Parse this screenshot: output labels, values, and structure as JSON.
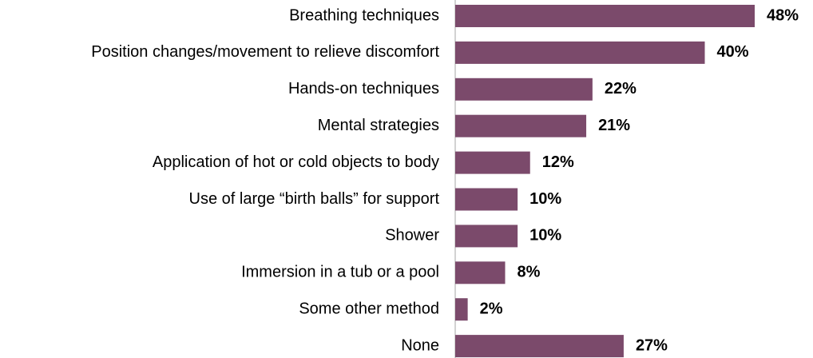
{
  "chart_data": {
    "type": "bar",
    "orientation": "horizontal",
    "categories": [
      "Breathing techniques",
      "Position changes/movement to relieve discomfort",
      "Hands-on techniques",
      "Mental strategies",
      "Application of hot or cold objects to body",
      "Use of large “birth balls” for support",
      "Shower",
      "Immersion in a tub or a pool",
      "Some other method",
      "None"
    ],
    "values": [
      48,
      40,
      22,
      21,
      12,
      10,
      10,
      8,
      2,
      27
    ],
    "value_labels": [
      "48%",
      "40%",
      "22%",
      "21%",
      "12%",
      "10%",
      "10%",
      "8%",
      "2%",
      "27%"
    ],
    "color": "#7b4a6b"
  }
}
